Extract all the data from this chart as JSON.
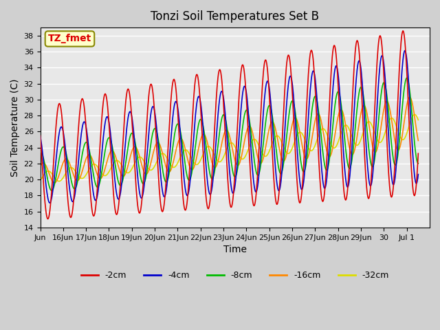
{
  "title": "Tonzi Soil Temperatures Set B",
  "xlabel": "Time",
  "ylabel": "Soil Temperature (C)",
  "ylim": [
    14,
    39
  ],
  "yticks": [
    14,
    16,
    18,
    20,
    22,
    24,
    26,
    28,
    30,
    32,
    34,
    36,
    38
  ],
  "legend_labels": [
    "-2cm",
    "-4cm",
    "-8cm",
    "-16cm",
    "-32cm"
  ],
  "legend_colors": [
    "#dd0000",
    "#0000cc",
    "#00bb00",
    "#ff8800",
    "#dddd00"
  ],
  "annotation_label": "TZ_fmet",
  "annotation_color": "#dd0000",
  "annotation_bg": "#ffffcc",
  "annotation_border": "#888800",
  "plot_bg": "#e8e8e8",
  "grid_color": "#ffffff",
  "tick_labels": [
    "Jun",
    "16Jun",
    "17Jun",
    "18Jun",
    "19Jun",
    "20Jun",
    "21Jun",
    "22Jun",
    "23Jun",
    "24Jun",
    "25Jun",
    "26Jun",
    "27Jun",
    "28Jun",
    "29Jun",
    "30",
    "Jul 1"
  ],
  "n_points": 792,
  "n_days": 16.5
}
